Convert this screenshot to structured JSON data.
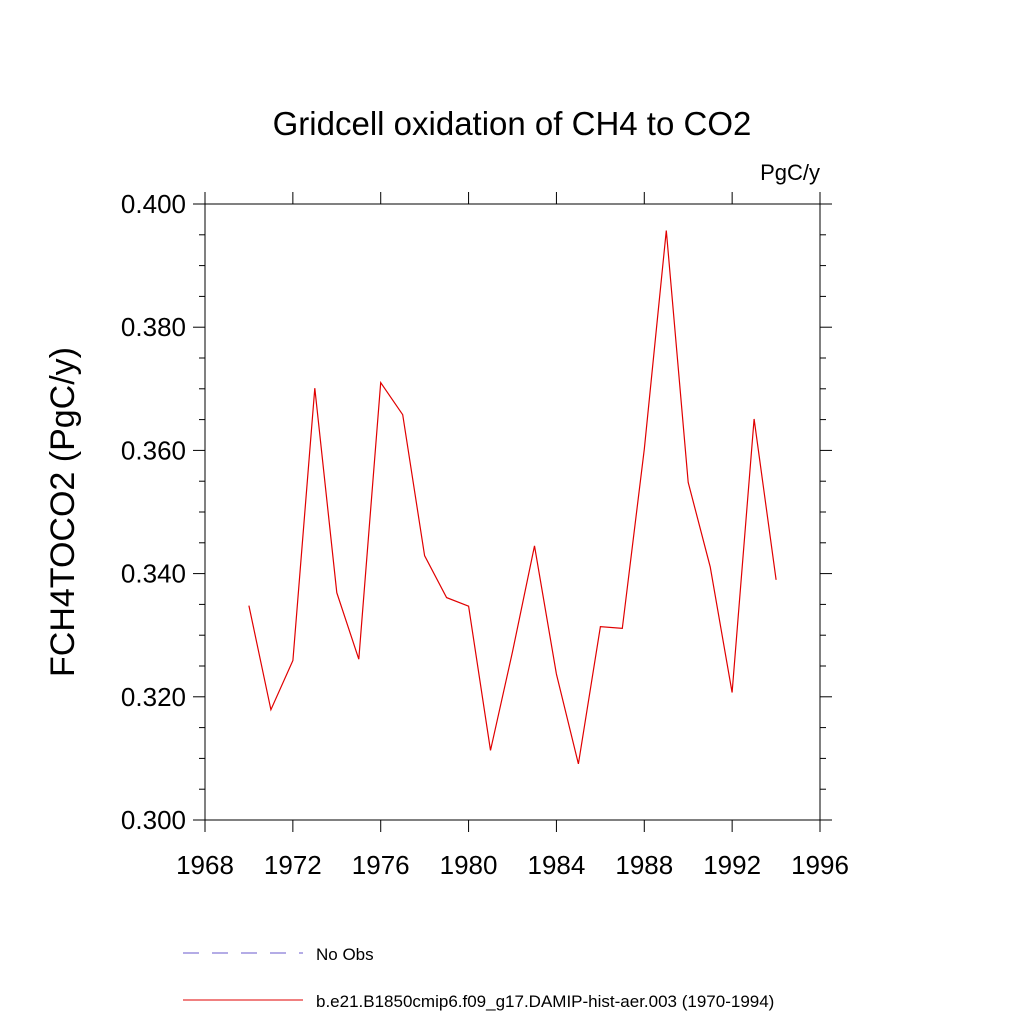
{
  "chart_data": {
    "type": "line",
    "title": "Gridcell oxidation of CH4 to CO2",
    "units": "PgC/y",
    "xlabel": "",
    "ylabel": "FCH4TOCO2  (PgC/y)",
    "xlim": [
      1968,
      1996
    ],
    "ylim": [
      0.3,
      0.4
    ],
    "x_ticks": [
      "1968",
      "1972",
      "1976",
      "1980",
      "1984",
      "1988",
      "1992",
      "1996"
    ],
    "y_ticks": [
      "0.300",
      "0.320",
      "0.340",
      "0.360",
      "0.380",
      "0.400"
    ],
    "grid": false,
    "legend_position": "bottom",
    "series": [
      {
        "name": "No Obs",
        "color": "#6a5acd",
        "dash": true,
        "x": [],
        "y": []
      },
      {
        "name": "b.e21.B1850cmip6.f09_g17.DAMIP-hist-aer.003 (1970-1994)",
        "color": "#e00000",
        "dash": false,
        "x": [
          1970,
          1971,
          1972,
          1973,
          1974,
          1975,
          1976,
          1977,
          1978,
          1979,
          1980,
          1981,
          1982,
          1983,
          1984,
          1985,
          1986,
          1987,
          1988,
          1989,
          1990,
          1991,
          1992,
          1993,
          1994
        ],
        "y": [
          0.3348,
          0.3179,
          0.3259,
          0.3701,
          0.3369,
          0.3261,
          0.371,
          0.3658,
          0.3429,
          0.3361,
          0.3347,
          0.3113,
          0.3273,
          0.3445,
          0.3237,
          0.3091,
          0.3314,
          0.3311,
          0.3602,
          0.3957,
          0.3548,
          0.3411,
          0.3207,
          0.3651,
          0.339
        ]
      }
    ]
  }
}
